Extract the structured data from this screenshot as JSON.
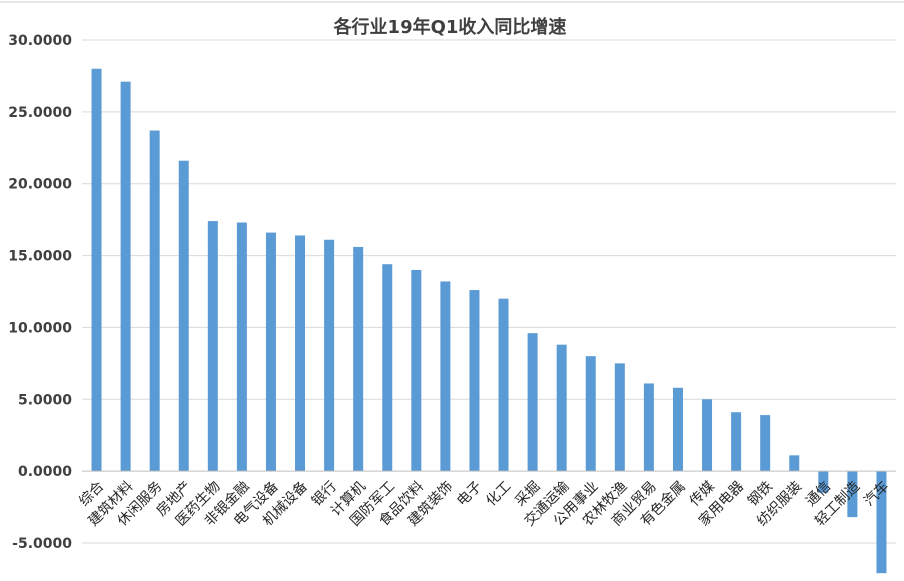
{
  "chart_data": {
    "type": "bar",
    "title": "各行业19年Q1收入同比增速",
    "xlabel": "",
    "ylabel": "",
    "ylim": [
      -5,
      30
    ],
    "yticks": [
      "30.0000",
      "25.0000",
      "20.0000",
      "15.0000",
      "10.0000",
      "5.0000",
      "0.0000",
      "-5.0000"
    ],
    "categories": [
      "综合",
      "建筑材料",
      "休闲服务",
      "房地产",
      "医药生物",
      "非银金融",
      "电气设备",
      "机械设备",
      "银行",
      "计算机",
      "国防军工",
      "食品饮料",
      "建筑装饰",
      "电子",
      "化工",
      "采掘",
      "交通运输",
      "公用事业",
      "农林牧渔",
      "商业贸易",
      "有色金属",
      "传媒",
      "家用电器",
      "钢铁",
      "纺织服装",
      "通信",
      "轻工制造",
      "汽车"
    ],
    "values": [
      28.0,
      27.1,
      23.7,
      21.6,
      17.4,
      17.3,
      16.6,
      16.4,
      16.1,
      15.6,
      14.4,
      14.0,
      13.2,
      12.6,
      12.0,
      9.6,
      8.8,
      8.0,
      7.5,
      6.1,
      5.8,
      5.0,
      4.1,
      3.9,
      1.1,
      -1.5,
      -3.2,
      -7.1
    ],
    "color": "#5b9bd5",
    "grid": true,
    "legend": "none"
  }
}
